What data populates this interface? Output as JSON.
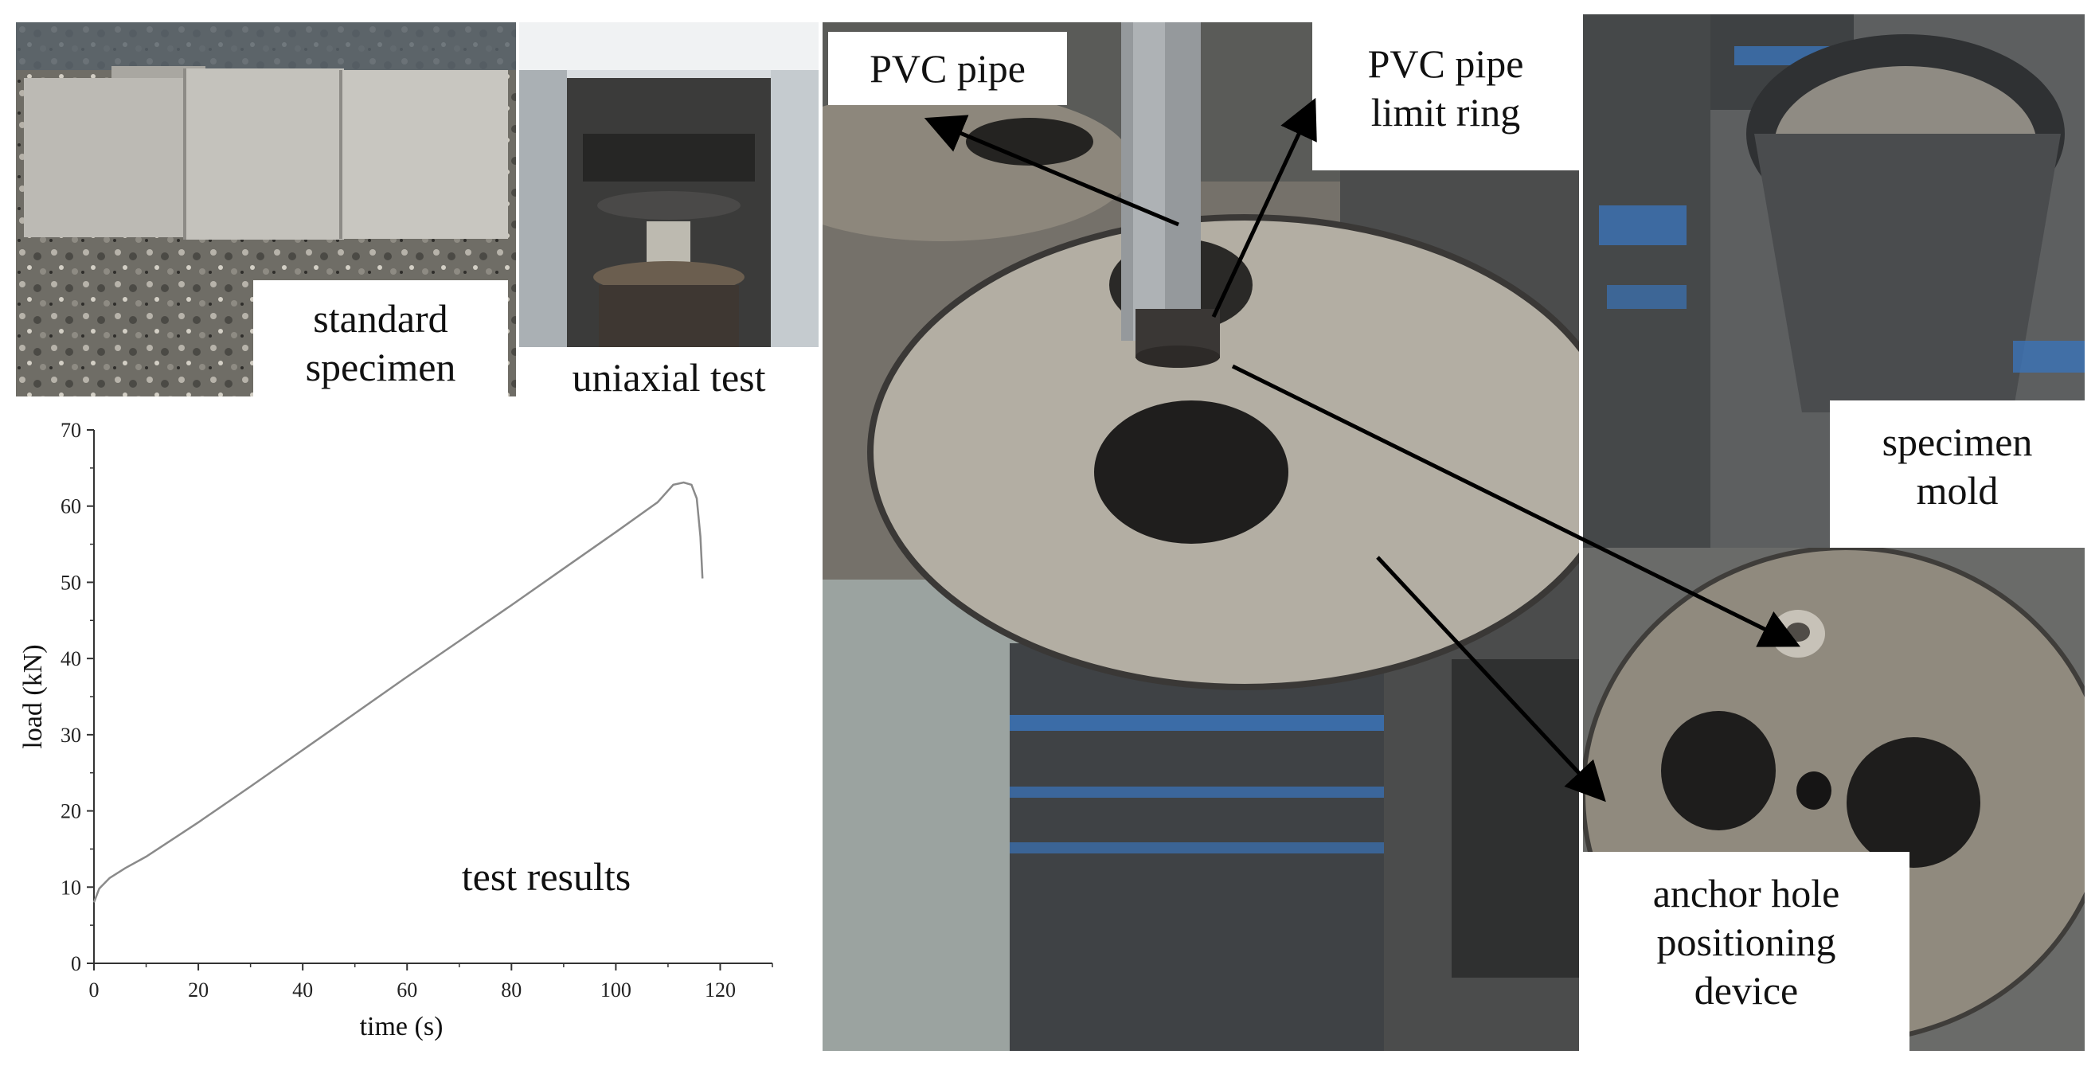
{
  "labels": {
    "standard_specimen": [
      "standard",
      "specimen"
    ],
    "uniaxial_test": "uniaxial test",
    "test_results": "test results",
    "pvc_pipe": "PVC pipe",
    "pvc_limit_ring": [
      "PVC pipe",
      "limit ring"
    ],
    "specimen_mold": [
      "specimen",
      "mold"
    ],
    "anchor_device": [
      "anchor hole",
      "positioning",
      "device"
    ]
  },
  "chart_data": {
    "type": "line",
    "title": "",
    "xlabel": "time (s)",
    "ylabel": "load (kN)",
    "xlim": [
      0,
      130
    ],
    "ylim": [
      0,
      70
    ],
    "xticks": [
      0,
      20,
      40,
      60,
      80,
      100,
      120
    ],
    "yticks": [
      0,
      10,
      20,
      30,
      40,
      50,
      60,
      70
    ],
    "grid": false,
    "x": [
      0,
      1,
      3,
      6,
      10,
      20,
      30,
      40,
      50,
      60,
      70,
      80,
      90,
      100,
      108,
      111,
      113,
      114.5,
      115.5,
      116.2,
      116.6
    ],
    "y": [
      8.0,
      9.8,
      11.2,
      12.5,
      14.0,
      18.5,
      23.2,
      28.0,
      32.8,
      37.6,
      42.3,
      47.0,
      51.8,
      56.6,
      60.5,
      62.8,
      63.1,
      62.8,
      61.0,
      56.0,
      50.5
    ],
    "line_color": "#8a8a8a"
  }
}
